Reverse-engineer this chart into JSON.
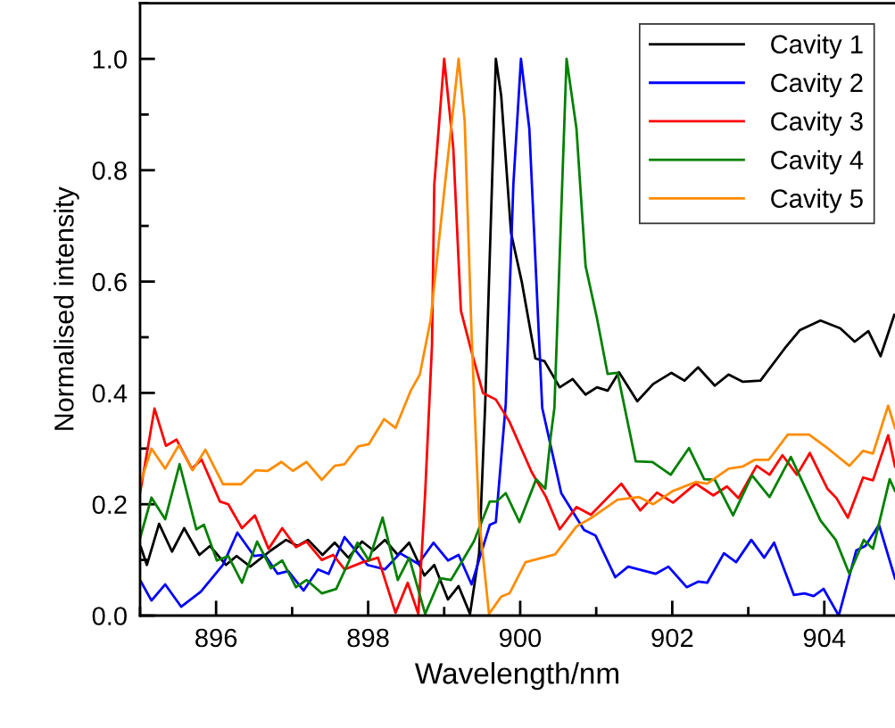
{
  "chart_data": {
    "type": "line",
    "xlabel": "Wavelength/nm",
    "ylabel": "Normalised intensity",
    "xlim": [
      895,
      904.93
    ],
    "ylim": [
      0,
      1.1
    ],
    "xticks": [
      896,
      898,
      900,
      902,
      904
    ],
    "yticks": [
      {
        "value": 0,
        "label": "0.0"
      },
      0.2,
      0.4,
      0.6,
      0.8,
      {
        "value": 1,
        "label": "1.0"
      }
    ],
    "grid": false,
    "legend": "top right",
    "marker": "none",
    "line_style": "solid",
    "series": [
      {
        "name": "Cavity 1",
        "color": "#000000",
        "x": [
          895.01,
          895.09,
          895.25,
          895.42,
          895.58,
          895.78,
          895.92,
          896.13,
          896.27,
          896.45,
          896.72,
          896.92,
          897.07,
          897.21,
          897.4,
          897.56,
          897.74,
          897.92,
          898.07,
          898.22,
          898.39,
          898.54,
          898.74,
          898.87,
          899.05,
          899.19,
          899.34,
          899.46,
          899.54,
          899.68,
          899.75,
          899.88,
          900.02,
          900.2,
          900.32,
          900.52,
          900.69,
          900.86,
          901.01,
          901.15,
          901.3,
          901.54,
          901.75,
          901.99,
          902.16,
          902.34,
          902.56,
          902.74,
          902.93,
          903.16,
          903.48,
          903.68,
          903.95,
          904.21,
          904.4,
          904.58,
          904.74,
          904.92
        ],
        "values": [
          0.123,
          0.091,
          0.165,
          0.115,
          0.157,
          0.109,
          0.125,
          0.091,
          0.107,
          0.088,
          0.117,
          0.136,
          0.125,
          0.136,
          0.109,
          0.131,
          0.104,
          0.133,
          0.117,
          0.136,
          0.109,
          0.131,
          0.072,
          0.091,
          0.029,
          0.053,
          0.003,
          0.112,
          0.38,
          1.0,
          0.934,
          0.687,
          0.6,
          0.462,
          0.457,
          0.41,
          0.425,
          0.397,
          0.41,
          0.404,
          0.437,
          0.385,
          0.416,
          0.436,
          0.422,
          0.446,
          0.413,
          0.433,
          0.42,
          0.422,
          0.48,
          0.513,
          0.53,
          0.516,
          0.492,
          0.511,
          0.466,
          0.54
        ]
      },
      {
        "name": "Cavity 2",
        "color": "#0000ff",
        "x": [
          895.0,
          895.15,
          895.33,
          895.54,
          895.8,
          896.09,
          896.28,
          896.5,
          896.64,
          896.81,
          896.95,
          897.15,
          897.34,
          897.48,
          897.69,
          897.99,
          898.22,
          898.42,
          898.66,
          898.86,
          899.05,
          899.19,
          899.36,
          899.6,
          899.68,
          899.81,
          899.91,
          900.01,
          900.12,
          900.29,
          900.54,
          900.84,
          900.99,
          901.25,
          901.42,
          901.78,
          901.95,
          902.19,
          902.34,
          902.46,
          902.68,
          902.84,
          903.04,
          903.21,
          903.34,
          903.6,
          903.74,
          903.86,
          903.99,
          904.19,
          904.42,
          904.54,
          904.72,
          904.93
        ],
        "values": [
          0.064,
          0.027,
          0.056,
          0.016,
          0.043,
          0.091,
          0.149,
          0.107,
          0.109,
          0.075,
          0.08,
          0.045,
          0.083,
          0.075,
          0.141,
          0.091,
          0.083,
          0.112,
          0.093,
          0.131,
          0.099,
          0.109,
          0.056,
          0.163,
          0.168,
          0.38,
          0.774,
          1.0,
          0.875,
          0.373,
          0.22,
          0.154,
          0.144,
          0.069,
          0.088,
          0.075,
          0.088,
          0.051,
          0.061,
          0.059,
          0.112,
          0.096,
          0.136,
          0.104,
          0.131,
          0.037,
          0.04,
          0.035,
          0.048,
          0.0,
          0.117,
          0.125,
          0.163,
          0.067
        ]
      },
      {
        "name": "Cavity 3",
        "color": "#ff0000",
        "x": [
          895.0,
          895.19,
          895.34,
          895.48,
          895.68,
          895.81,
          896.05,
          896.16,
          896.34,
          896.51,
          896.69,
          896.87,
          897.05,
          897.19,
          897.39,
          897.54,
          897.69,
          897.93,
          898.13,
          898.36,
          898.52,
          898.66,
          898.75,
          898.84,
          898.87,
          899.0,
          899.12,
          899.22,
          899.36,
          899.51,
          899.68,
          899.86,
          900.15,
          900.34,
          900.52,
          900.74,
          900.93,
          901.33,
          901.58,
          901.8,
          902.01,
          902.31,
          902.54,
          902.72,
          902.87,
          903.11,
          903.28,
          903.45,
          903.64,
          903.81,
          904.04,
          904.16,
          904.31,
          904.51,
          904.64,
          904.84,
          904.93
        ],
        "values": [
          0.22,
          0.372,
          0.305,
          0.316,
          0.264,
          0.28,
          0.205,
          0.2,
          0.157,
          0.18,
          0.12,
          0.157,
          0.123,
          0.133,
          0.1,
          0.109,
          0.083,
          0.096,
          0.104,
          0.005,
          0.059,
          0.003,
          0.22,
          0.486,
          0.774,
          1.0,
          0.84,
          0.548,
          0.474,
          0.4,
          0.388,
          0.348,
          0.258,
          0.213,
          0.155,
          0.195,
          0.181,
          0.237,
          0.189,
          0.221,
          0.203,
          0.237,
          0.216,
          0.232,
          0.211,
          0.269,
          0.253,
          0.288,
          0.253,
          0.292,
          0.228,
          0.211,
          0.176,
          0.248,
          0.243,
          0.324,
          0.268
        ]
      },
      {
        "name": "Cavity 4",
        "color": "#008000",
        "x": [
          895.0,
          895.15,
          895.33,
          895.52,
          895.74,
          895.84,
          896.01,
          896.16,
          896.34,
          896.54,
          896.72,
          896.87,
          897.05,
          897.19,
          897.39,
          897.58,
          897.86,
          898.01,
          898.19,
          898.39,
          898.54,
          898.75,
          898.95,
          899.09,
          899.39,
          899.6,
          899.69,
          899.81,
          899.99,
          900.21,
          900.33,
          900.4,
          900.45,
          900.61,
          900.74,
          900.86,
          901.01,
          901.15,
          901.28,
          901.52,
          901.74,
          901.98,
          902.22,
          902.42,
          902.56,
          902.8,
          903.05,
          903.28,
          903.56,
          903.95,
          904.15,
          904.33,
          904.52,
          904.64,
          904.86,
          904.93
        ],
        "values": [
          0.139,
          0.212,
          0.173,
          0.272,
          0.155,
          0.163,
          0.099,
          0.107,
          0.059,
          0.133,
          0.085,
          0.099,
          0.051,
          0.064,
          0.04,
          0.048,
          0.131,
          0.099,
          0.176,
          0.064,
          0.104,
          0.003,
          0.067,
          0.064,
          0.133,
          0.205,
          0.205,
          0.22,
          0.168,
          0.245,
          0.228,
          0.32,
          0.373,
          1.0,
          0.875,
          0.628,
          0.534,
          0.434,
          0.436,
          0.277,
          0.276,
          0.253,
          0.301,
          0.245,
          0.244,
          0.18,
          0.252,
          0.213,
          0.285,
          0.171,
          0.136,
          0.075,
          0.136,
          0.12,
          0.245,
          0.224
        ]
      },
      {
        "name": "Cavity 5",
        "color": "#ff8c00",
        "x": [
          895.0,
          895.15,
          895.33,
          895.51,
          895.69,
          895.86,
          896.09,
          896.33,
          896.52,
          896.68,
          896.86,
          897.01,
          897.19,
          897.39,
          897.56,
          897.69,
          897.87,
          898.01,
          898.21,
          898.36,
          898.56,
          898.68,
          898.82,
          899.0,
          899.19,
          899.27,
          899.36,
          899.46,
          899.59,
          899.75,
          899.86,
          900.07,
          900.46,
          900.74,
          900.93,
          901.28,
          901.56,
          901.75,
          902.01,
          902.31,
          902.46,
          902.74,
          902.93,
          903.09,
          903.27,
          903.52,
          903.8,
          904.04,
          904.33,
          904.51,
          904.64,
          904.84,
          904.93
        ],
        "values": [
          0.236,
          0.3,
          0.264,
          0.306,
          0.261,
          0.298,
          0.236,
          0.236,
          0.261,
          0.26,
          0.276,
          0.26,
          0.276,
          0.244,
          0.269,
          0.272,
          0.304,
          0.308,
          0.353,
          0.337,
          0.404,
          0.433,
          0.53,
          0.761,
          1.0,
          0.888,
          0.508,
          0.173,
          0.003,
          0.034,
          0.04,
          0.096,
          0.11,
          0.16,
          0.175,
          0.208,
          0.213,
          0.2,
          0.224,
          0.24,
          0.237,
          0.264,
          0.268,
          0.28,
          0.28,
          0.325,
          0.325,
          0.301,
          0.269,
          0.296,
          0.291,
          0.377,
          0.337
        ]
      }
    ]
  }
}
